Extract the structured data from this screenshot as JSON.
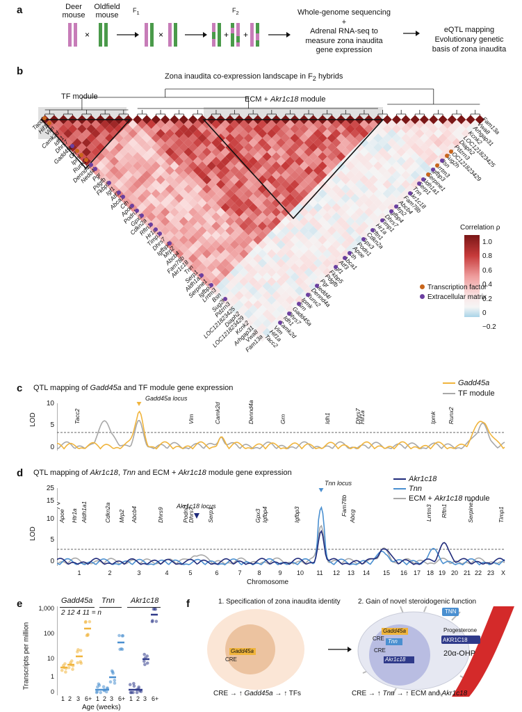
{
  "panel_a": {
    "label": "a",
    "deer_mouse": "Deer\nmouse",
    "oldfield_mouse": "Oldfield\nmouse",
    "cross": "×",
    "f1": "F1",
    "f2": "F2",
    "plus": "+",
    "method_lines": [
      "Whole-genome sequencing",
      "+",
      "Adrenal RNA-seq to",
      "measure zona inaudita",
      "gene expression"
    ],
    "result_lines": [
      "eQTL mapping",
      "Evolutionary genetic",
      "basis of zona inaudita"
    ]
  },
  "panel_b": {
    "label": "b",
    "title": "Zona inaudita co-expression landscape in F2 hybrids",
    "tf_module": "TF module",
    "ecm_module_prefix": "ECM + ",
    "ecm_module_gene": "Akr1c18",
    "ecm_module_suffix": " module",
    "colorbar_title": "Correlation ρ",
    "colorbar_ticks": [
      "1.0",
      "0.8",
      "0.6",
      "0.4",
      "0.2",
      "0",
      "−0.2"
    ],
    "legend": [
      {
        "label": "Transcription factor",
        "color": "#c8651b"
      },
      {
        "label": "Extracellular matrix",
        "color": "#6b3fa0"
      }
    ],
    "left_genes": [
      "Tacc2",
      "Hif1a",
      "Vim",
      "Camk2d",
      "Idh1",
      "Dhrs7",
      "Gadd45a",
      "Grn",
      "Ipmk",
      "Runx2",
      "Dennd4a",
      "Nedd4l",
      "Pgr",
      "Pdgfb",
      "Fkbp5",
      "Igf1",
      "Atf3",
      "Abca1",
      "Cth",
      "Apoe",
      "Podn1",
      "Gpx3",
      "Cdkn2a",
      "Rftn1",
      "Hr1a",
      "Timp1",
      "Dhrs7",
      "Igfbp4",
      "Mrp2",
      "Abcb4",
      "Fam78b",
      "Akr1c18",
      "Tnn",
      "Serp1",
      "Aldh1a1",
      "Serpine1",
      "Igfbp3",
      "Lrrtm3",
      "Bsn",
      "Sug2h",
      "Pdzrn3",
      "LOC121823425",
      "Diaph2",
      "LOC121823429",
      "Kcnk2",
      "Arhgap31",
      "Vwa8",
      "Fam13a"
    ],
    "right_genes": [
      "Fam13a",
      "Vwa8",
      "Arhgap31",
      "Kcnk2",
      "LOC121823425",
      "Diaph2",
      "Pdzrn3",
      "LOC121823429",
      "Sug2h",
      "Bsn",
      "Lrrtm3",
      "Igfbp3",
      "Serpine1",
      "Aldh1a1",
      "Serp1",
      "Tnn",
      "Akr1c18",
      "Fam78b",
      "Abcb4",
      "Mrp2",
      "Igfbp4",
      "Dhrs7",
      "Timp1",
      "Hr1a",
      "Rftn1",
      "Cdkn2a",
      "Gpx3",
      "Podn1",
      "Apoe",
      "Cth",
      "Abca1",
      "Atf3",
      "Igf1",
      "Fkbp5",
      "Pdgfb",
      "Pgr",
      "Nedd4l",
      "Dennd4a",
      "Runx2",
      "Ipmk",
      "Grn",
      "Gadd45a",
      "Dhrs7",
      "Idh1",
      "Camk2d",
      "Vim",
      "Hif1a",
      "Tacc2"
    ]
  },
  "panel_c": {
    "label": "c",
    "title_prefix": "QTL mapping of ",
    "title_gene": "Gadd45a",
    "title_suffix": " and TF module gene expression",
    "locus_label": "Gadd45a locus",
    "ylabel": "LOD",
    "yticks": [
      "10",
      "5",
      "0"
    ],
    "legend": [
      {
        "label": "Gadd45a",
        "color": "#f0b43c"
      },
      {
        "label": "TF module",
        "color": "#a8a8a8"
      }
    ],
    "gene_labels": [
      "Tacc2",
      "Vim",
      "Camk2d",
      "Dennd4a",
      "Grn",
      "Idh1",
      "Dhrs7",
      "Hif1a",
      "Ipmk",
      "Runx2"
    ]
  },
  "panel_d": {
    "label": "d",
    "title_prefix": "QTL mapping of ",
    "title_gene1": "Akr1c18",
    "title_mid1": ", ",
    "title_gene2": "Tnn",
    "title_mid2": " and ECM + ",
    "title_gene3": "Akr1c18",
    "title_suffix": " module gene expression",
    "locus_tnn": "Tnn locus",
    "locus_akr": "Akr1c18 locus",
    "ylabel": "LOD",
    "yticks": [
      "25",
      "15",
      "10",
      "5",
      "0"
    ],
    "legend": [
      {
        "label": "Akr1c18",
        "color": "#1f2a7a"
      },
      {
        "label": "Tnn",
        "color": "#4a8fd0"
      },
      {
        "label": "ECM + Akr1c18 module",
        "color": "#a8a8a8"
      }
    ],
    "xlabel": "Chromosome",
    "chromosomes": [
      "1",
      "2",
      "3",
      "4",
      "5",
      "6",
      "7",
      "8",
      "9",
      "10",
      "11",
      "12",
      "13",
      "14",
      "15",
      "16",
      "17",
      "18",
      "19",
      "20",
      "21",
      "22",
      "23",
      "X"
    ],
    "gene_labels": [
      "Apoe",
      "Htr1a",
      "Aldh1a1",
      "Cdkn2a",
      "Mrp2",
      "Abcb4",
      "Dhrs9",
      "Podnl1",
      "Dhrs7",
      "Serp1",
      "Gpx3",
      "Igfbp4",
      "Igfbp3",
      "Fam78b",
      "Abcg",
      "Lrrtm3",
      "Rftn1",
      "Serpine1",
      "Timp1"
    ]
  },
  "panel_e": {
    "label": "e",
    "groups": [
      "Gadd45a",
      "Tnn",
      "Akr1c18"
    ],
    "n_values": "2 12 4 11 = n",
    "ylabel": "Transcripts per million",
    "yticks": [
      "1,000",
      "100",
      "10",
      "1",
      "0"
    ],
    "xticks": [
      "1",
      "2",
      "3",
      "6+",
      "1",
      "2",
      "3",
      "6+",
      "1",
      "2",
      "3",
      "6+"
    ],
    "xlabel": "Age (weeks)"
  },
  "panel_f": {
    "label": "f",
    "step1": "1. Specification of zona inaudita identity",
    "step2": "2. Gain of novel steroidogenic function",
    "cre": "CRE",
    "gadd45a": "Gadd45a",
    "tnn": "Tnn",
    "akr1c18": "Akr1c18",
    "tnn_protein": "TNN",
    "akr_protein": "AKR1C18",
    "progesterone": "Progesterone",
    "ohp": "20α-OHP",
    "formula1": [
      "CRE",
      "→",
      "↑",
      "Gadd45a",
      "→",
      "↑",
      "TFs"
    ],
    "formula2": [
      "CRE",
      "→",
      "↑",
      "Tnn",
      "→",
      "↑",
      "ECM and",
      "Akr1c18"
    ]
  }
}
